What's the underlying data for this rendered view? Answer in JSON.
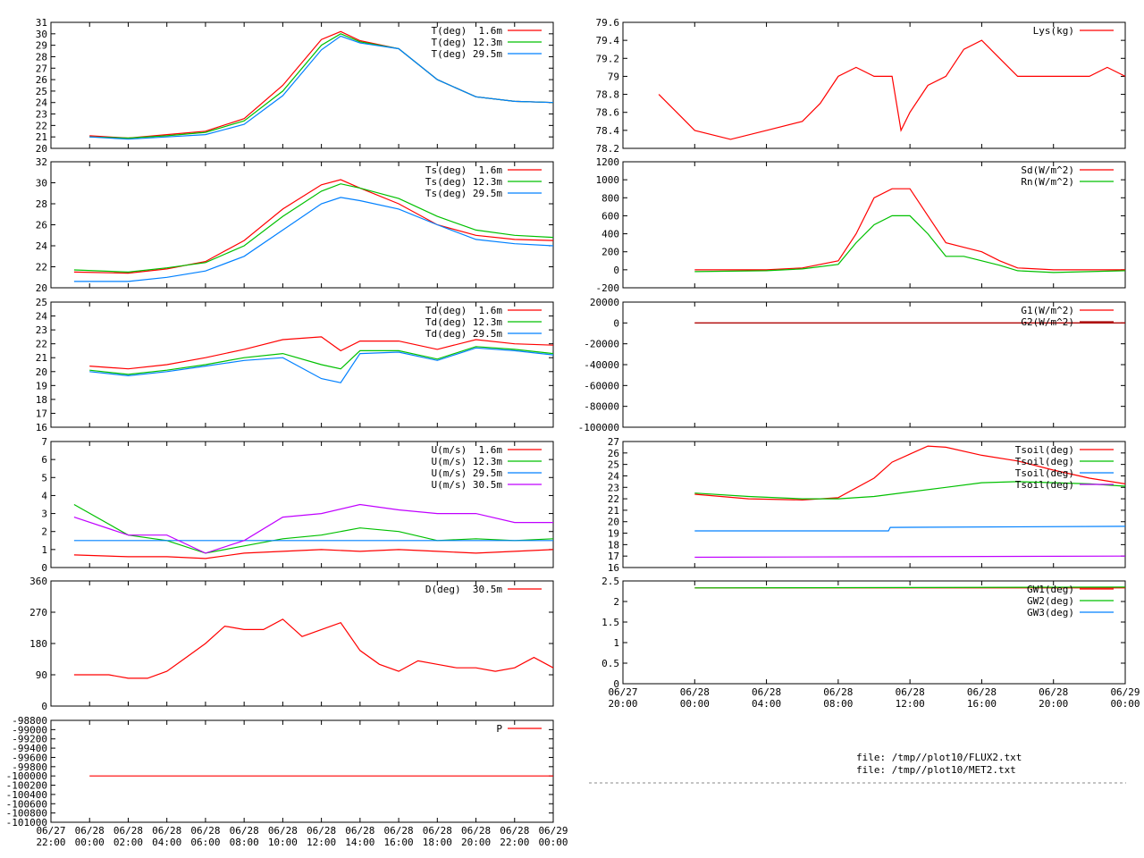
{
  "files": [
    "file: /tmp//plot10/FLUX2.txt",
    "file: /tmp//plot10/MET2.txt"
  ],
  "colors": {
    "red": "#ff0000",
    "green": "#00c000",
    "blue": "#0080ff",
    "magenta": "#c000ff",
    "darkred": "#a00000",
    "darkgreen": "#008000"
  },
  "chart_data": [
    {
      "id": "T",
      "type": "line",
      "ylim": [
        20,
        31
      ],
      "yticks": [
        20,
        21,
        22,
        23,
        24,
        25,
        26,
        27,
        28,
        29,
        30,
        31
      ],
      "x_range_hours": [
        -2,
        24
      ],
      "series": [
        {
          "name": "T(deg)  1.6m",
          "color": "#ff0000",
          "x": [
            0,
            2,
            4,
            6,
            8,
            10,
            12,
            13,
            14,
            16,
            18,
            20,
            22,
            24
          ],
          "y": [
            21.1,
            20.9,
            21.2,
            21.5,
            22.6,
            25.5,
            29.5,
            30.2,
            29.4,
            28.7,
            26.0,
            24.5,
            24.1,
            24.0
          ]
        },
        {
          "name": "T(deg) 12.3m",
          "color": "#00c000",
          "x": [
            0,
            2,
            4,
            6,
            8,
            10,
            12,
            13,
            14,
            16,
            18,
            20,
            22,
            24
          ],
          "y": [
            21.0,
            20.9,
            21.1,
            21.4,
            22.4,
            25.0,
            29.0,
            30.0,
            29.3,
            28.7,
            26.0,
            24.5,
            24.1,
            24.0
          ]
        },
        {
          "name": "T(deg) 29.5m",
          "color": "#0080ff",
          "x": [
            0,
            2,
            4,
            6,
            8,
            10,
            12,
            13,
            14,
            16,
            18,
            20,
            22,
            24
          ],
          "y": [
            21.0,
            20.8,
            21.0,
            21.2,
            22.1,
            24.6,
            28.6,
            29.8,
            29.2,
            28.7,
            26.0,
            24.5,
            24.1,
            24.0
          ]
        }
      ]
    },
    {
      "id": "Ts",
      "type": "line",
      "ylim": [
        20,
        32
      ],
      "yticks": [
        20,
        22,
        24,
        26,
        28,
        30,
        32
      ],
      "x_range_hours": [
        -2,
        24
      ],
      "series": [
        {
          "name": "Ts(deg)  1.6m",
          "color": "#ff0000",
          "x": [
            -0.8,
            2,
            4,
            6,
            8,
            10,
            12,
            13,
            14,
            16,
            18,
            20,
            22,
            24
          ],
          "y": [
            21.5,
            21.4,
            21.8,
            22.5,
            24.5,
            27.5,
            29.8,
            30.3,
            29.5,
            28.0,
            26.0,
            25.0,
            24.6,
            24.5
          ]
        },
        {
          "name": "Ts(deg) 12.3m",
          "color": "#00c000",
          "x": [
            -0.8,
            2,
            4,
            6,
            8,
            10,
            12,
            13,
            14,
            16,
            18,
            20,
            22,
            24
          ],
          "y": [
            21.7,
            21.5,
            21.9,
            22.4,
            24.0,
            26.8,
            29.2,
            29.9,
            29.5,
            28.5,
            26.8,
            25.5,
            25.0,
            24.8
          ]
        },
        {
          "name": "Ts(deg) 29.5m",
          "color": "#0080ff",
          "x": [
            -0.8,
            2,
            4,
            6,
            8,
            10,
            12,
            13,
            14,
            16,
            18,
            20,
            22,
            24
          ],
          "y": [
            20.6,
            20.6,
            21.0,
            21.6,
            23.0,
            25.5,
            28.0,
            28.6,
            28.3,
            27.5,
            26.0,
            24.6,
            24.2,
            24.0
          ]
        }
      ]
    },
    {
      "id": "Td",
      "type": "line",
      "ylim": [
        16,
        25
      ],
      "yticks": [
        16,
        17,
        18,
        19,
        20,
        21,
        22,
        23,
        24,
        25
      ],
      "x_range_hours": [
        -2,
        24
      ],
      "series": [
        {
          "name": "Td(deg)  1.6m",
          "color": "#ff0000",
          "x": [
            0,
            2,
            4,
            6,
            8,
            10,
            12,
            13,
            14,
            16,
            18,
            20,
            22,
            24
          ],
          "y": [
            20.4,
            20.2,
            20.5,
            21.0,
            21.6,
            22.3,
            22.5,
            21.5,
            22.2,
            22.2,
            21.6,
            22.3,
            22.0,
            21.9
          ]
        },
        {
          "name": "Td(deg) 12.3m",
          "color": "#00c000",
          "x": [
            0,
            2,
            4,
            6,
            8,
            10,
            12,
            13,
            14,
            16,
            18,
            20,
            22,
            24
          ],
          "y": [
            20.1,
            19.8,
            20.1,
            20.5,
            21.0,
            21.3,
            20.5,
            20.2,
            21.5,
            21.5,
            20.9,
            21.8,
            21.6,
            21.3
          ]
        },
        {
          "name": "Td(deg) 29.5m",
          "color": "#0080ff",
          "x": [
            0,
            2,
            4,
            6,
            8,
            10,
            12,
            13,
            14,
            16,
            18,
            20,
            22,
            24
          ],
          "y": [
            20.0,
            19.7,
            20.0,
            20.4,
            20.8,
            21.0,
            19.5,
            19.2,
            21.3,
            21.4,
            20.8,
            21.7,
            21.5,
            21.2
          ]
        }
      ]
    },
    {
      "id": "U",
      "type": "line",
      "ylim": [
        0,
        7
      ],
      "yticks": [
        0,
        1,
        2,
        3,
        4,
        5,
        6,
        7
      ],
      "x_range_hours": [
        -2,
        24
      ],
      "series": [
        {
          "name": "U(m/s)  1.6m",
          "color": "#ff0000",
          "x": [
            -0.8,
            2,
            4,
            6,
            8,
            10,
            12,
            14,
            16,
            18,
            20,
            22,
            24
          ],
          "y": [
            0.7,
            0.6,
            0.6,
            0.5,
            0.8,
            0.9,
            1.0,
            0.9,
            1.0,
            0.9,
            0.8,
            0.9,
            1.0
          ]
        },
        {
          "name": "U(m/s) 12.3m",
          "color": "#00c000",
          "x": [
            -0.8,
            2,
            4,
            6,
            8,
            10,
            12,
            14,
            16,
            18,
            20,
            22,
            24
          ],
          "y": [
            3.5,
            1.8,
            1.5,
            0.8,
            1.2,
            1.6,
            1.8,
            2.2,
            2.0,
            1.5,
            1.6,
            1.5,
            1.6
          ]
        },
        {
          "name": "U(m/s) 29.5m",
          "color": "#0080ff",
          "x": [
            -0.8,
            24
          ],
          "y": [
            1.5,
            1.5
          ]
        },
        {
          "name": "U(m/s) 30.5m",
          "color": "#c000ff",
          "x": [
            -0.8,
            2,
            4,
            6,
            8,
            10,
            12,
            14,
            16,
            18,
            20,
            22,
            24
          ],
          "y": [
            2.8,
            1.8,
            1.8,
            0.8,
            1.5,
            2.8,
            3.0,
            3.5,
            3.2,
            3.0,
            3.0,
            2.5,
            2.5
          ]
        }
      ]
    },
    {
      "id": "D",
      "type": "line",
      "ylim": [
        0,
        360
      ],
      "yticks": [
        0,
        90,
        180,
        270,
        360
      ],
      "x_range_hours": [
        -2,
        24
      ],
      "series": [
        {
          "name": "D(deg)  30.5m",
          "color": "#ff0000",
          "x": [
            -0.8,
            1,
            2,
            3,
            4,
            5,
            6,
            7,
            8,
            9,
            10,
            11,
            12,
            13,
            14,
            15,
            16,
            17,
            18,
            19,
            20,
            21,
            22,
            23,
            24
          ],
          "y": [
            90,
            90,
            80,
            80,
            100,
            140,
            180,
            230,
            220,
            220,
            250,
            200,
            220,
            240,
            160,
            120,
            100,
            130,
            120,
            110,
            110,
            100,
            110,
            140,
            110
          ]
        }
      ]
    },
    {
      "id": "P",
      "type": "line",
      "ylim": [
        -101000,
        -98800
      ],
      "yticks": [
        -101000,
        -100800,
        -100600,
        -100400,
        -100200,
        -100000,
        -99800,
        -99600,
        -99400,
        -99200,
        -99000,
        -98800
      ],
      "x_range_hours": [
        -2,
        24
      ],
      "xticks_top": [
        "06/27",
        "06/28",
        "06/28",
        "06/28",
        "06/28",
        "06/28",
        "06/28",
        "06/28",
        "06/28",
        "06/28",
        "06/28",
        "06/28",
        "06/28",
        "06/29"
      ],
      "xticks_bottom": [
        "22:00",
        "00:00",
        "02:00",
        "04:00",
        "06:00",
        "08:00",
        "10:00",
        "12:00",
        "14:00",
        "16:00",
        "18:00",
        "20:00",
        "22:00",
        "00:00"
      ],
      "series": [
        {
          "name": "P",
          "color": "#ff0000",
          "x": [
            0,
            24
          ],
          "y": [
            -100000,
            -100000
          ]
        }
      ]
    },
    {
      "id": "Lys",
      "type": "line",
      "ylim": [
        78.2,
        79.6
      ],
      "yticks": [
        78.2,
        78.4,
        78.6,
        78.8,
        79.0,
        79.2,
        79.4,
        79.6
      ],
      "x_range_hours": [
        -4,
        24
      ],
      "series": [
        {
          "name": "Lys(kg)",
          "color": "#ff0000",
          "x": [
            -2,
            -1,
            0,
            2,
            4,
            6,
            7,
            8,
            9,
            10,
            11,
            11.5,
            12,
            13,
            14,
            15,
            16,
            17,
            18,
            20,
            22,
            23,
            24
          ],
          "y": [
            78.8,
            78.6,
            78.4,
            78.3,
            78.4,
            78.5,
            78.7,
            79.0,
            79.1,
            79.0,
            79.0,
            78.4,
            78.6,
            78.9,
            79.0,
            79.3,
            79.4,
            79.2,
            79.0,
            79.0,
            79.0,
            79.1,
            79.0
          ]
        }
      ]
    },
    {
      "id": "Sd",
      "type": "line",
      "ylim": [
        -200,
        1200
      ],
      "yticks": [
        -200,
        0,
        200,
        400,
        600,
        800,
        1000,
        1200
      ],
      "x_range_hours": [
        -4,
        24
      ],
      "series": [
        {
          "name": "Sd(W/m^2)",
          "color": "#ff0000",
          "x": [
            0,
            4,
            6,
            8,
            9,
            10,
            11,
            12,
            13,
            14,
            15,
            16,
            17,
            18,
            20,
            22,
            24
          ],
          "y": [
            0,
            0,
            20,
            100,
            400,
            800,
            900,
            900,
            600,
            300,
            250,
            200,
            100,
            20,
            0,
            0,
            0
          ]
        },
        {
          "name": "Rn(W/m^2)",
          "color": "#00c000",
          "x": [
            0,
            4,
            6,
            8,
            9,
            10,
            11,
            12,
            13,
            14,
            15,
            16,
            17,
            18,
            20,
            22,
            24
          ],
          "y": [
            -20,
            -10,
            10,
            60,
            300,
            500,
            600,
            600,
            400,
            150,
            150,
            100,
            50,
            -10,
            -30,
            -20,
            -10
          ]
        }
      ]
    },
    {
      "id": "G",
      "type": "line",
      "ylim": [
        -100000,
        20000
      ],
      "yticks": [
        -100000,
        -80000,
        -60000,
        -40000,
        -20000,
        0,
        20000
      ],
      "x_range_hours": [
        -4,
        24
      ],
      "series": [
        {
          "name": "G1(W/m^2)",
          "color": "#ff0000",
          "x": [
            0,
            24
          ],
          "y": [
            0,
            0
          ]
        },
        {
          "name": "G2(W/m^2)",
          "color": "#a00000",
          "x": [
            0,
            24
          ],
          "y": [
            0,
            0
          ]
        }
      ]
    },
    {
      "id": "Tsoil",
      "type": "line",
      "ylim": [
        16,
        27
      ],
      "yticks": [
        16,
        17,
        18,
        19,
        20,
        21,
        22,
        23,
        24,
        25,
        26,
        27
      ],
      "x_range_hours": [
        -4,
        24
      ],
      "series": [
        {
          "name": "Tsoil(deg)",
          "color": "#ff0000",
          "x": [
            0,
            3,
            6,
            8,
            10,
            11,
            12,
            13,
            14,
            16,
            18,
            20,
            22,
            24
          ],
          "y": [
            22.4,
            22.0,
            21.9,
            22.1,
            23.8,
            25.2,
            25.9,
            26.6,
            26.5,
            25.8,
            25.3,
            24.5,
            23.8,
            23.3
          ]
        },
        {
          "name": "Tsoil(deg)",
          "color": "#00c000",
          "x": [
            0,
            3,
            6,
            8,
            10,
            12,
            14,
            16,
            18,
            20,
            22,
            24
          ],
          "y": [
            22.5,
            22.2,
            22.0,
            22.0,
            22.2,
            22.6,
            23.0,
            23.4,
            23.5,
            23.4,
            23.3,
            23.1
          ]
        },
        {
          "name": "Tsoil(deg)",
          "color": "#0080ff",
          "x": [
            0,
            10.8,
            10.9,
            24
          ],
          "y": [
            19.2,
            19.2,
            19.5,
            19.6
          ]
        },
        {
          "name": "Tsoil(deg)",
          "color": "#c000ff",
          "x": [
            0,
            24
          ],
          "y": [
            16.9,
            17.0
          ]
        }
      ]
    },
    {
      "id": "GW",
      "type": "line",
      "ylim": [
        0,
        2.5
      ],
      "yticks": [
        0,
        0.5,
        1,
        1.5,
        2,
        2.5
      ],
      "x_range_hours": [
        -4,
        24
      ],
      "xticks_top": [
        "06/27",
        "06/28",
        "06/28",
        "06/28",
        "06/28",
        "06/28",
        "06/28",
        "06/29"
      ],
      "xticks_bottom": [
        "20:00",
        "00:00",
        "04:00",
        "08:00",
        "12:00",
        "16:00",
        "20:00",
        "00:00"
      ],
      "series": [
        {
          "name": "GW1(deg)",
          "color": "#ff0000",
          "x": [
            0,
            24
          ],
          "y": [
            2.33,
            2.33
          ]
        },
        {
          "name": "GW2(deg)",
          "color": "#00c000",
          "x": [
            0,
            24
          ],
          "y": [
            2.33,
            2.35
          ]
        },
        {
          "name": "GW3(deg)",
          "color": "#0080ff",
          "x": [],
          "y": []
        }
      ]
    }
  ]
}
